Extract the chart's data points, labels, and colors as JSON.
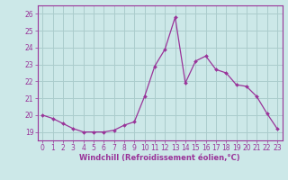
{
  "x": [
    0,
    1,
    2,
    3,
    4,
    5,
    6,
    7,
    8,
    9,
    10,
    11,
    12,
    13,
    14,
    15,
    16,
    17,
    18,
    19,
    20,
    21,
    22,
    23
  ],
  "y": [
    20.0,
    19.8,
    19.5,
    19.2,
    19.0,
    19.0,
    19.0,
    19.1,
    19.4,
    19.6,
    21.1,
    22.9,
    23.9,
    25.8,
    21.9,
    23.2,
    23.5,
    22.7,
    22.5,
    21.8,
    21.7,
    21.1,
    20.1,
    19.2
  ],
  "line_color": "#993399",
  "marker": "D",
  "marker_size": 2,
  "bg_color": "#cce8e8",
  "grid_color": "#aacccc",
  "xlabel": "Windchill (Refroidissement éolien,°C)",
  "xlabel_color": "#993399",
  "tick_color": "#993399",
  "spine_color": "#993399",
  "ylim": [
    18.5,
    26.5
  ],
  "xlim": [
    -0.5,
    23.5
  ],
  "yticks": [
    19,
    20,
    21,
    22,
    23,
    24,
    25,
    26
  ],
  "xticks": [
    0,
    1,
    2,
    3,
    4,
    5,
    6,
    7,
    8,
    9,
    10,
    11,
    12,
    13,
    14,
    15,
    16,
    17,
    18,
    19,
    20,
    21,
    22,
    23
  ],
  "tick_fontsize": 5.5,
  "xlabel_fontsize": 6.0
}
